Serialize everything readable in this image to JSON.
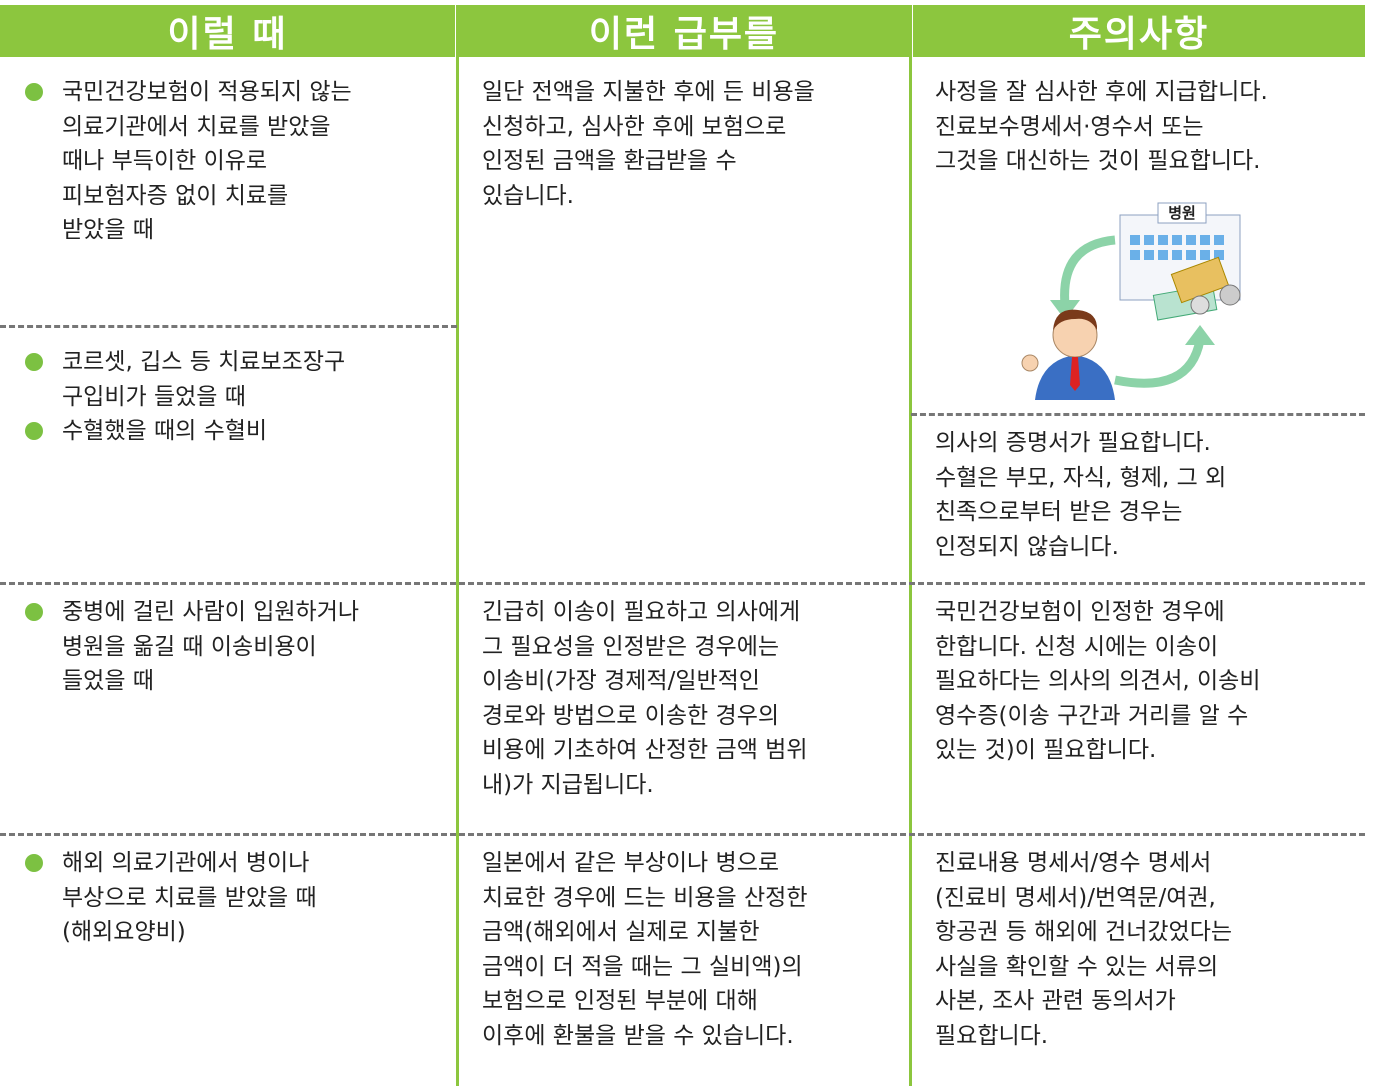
{
  "header": [
    "이럴 때",
    "이런 급부를",
    "주의사항"
  ],
  "illustration_label": "병원",
  "rows": [
    {
      "situation": [
        [
          [
            "국민건강보험이 적용되지 않는",
            "의료기관에서 치료를 받았을",
            "때나 부득이한 이유로",
            "피보험자증 없이 치료를",
            "받았을 때"
          ]
        ],
        [
          [
            "코르셋, 깁스 등 치료보조장구",
            "구입비가 들었을 때"
          ],
          [
            "수혈했을 때의 수혈비"
          ]
        ]
      ],
      "benefit": [
        "일단 전액을 지불한 후에 든 비용을",
        "신청하고, 심사한 후에 보험으로",
        "인정된 금액을 환급받을 수",
        "있습니다."
      ],
      "notes": [
        [
          "사정을 잘 심사한 후에 지급합니다.",
          "진료보수명세서·영수서 또는",
          "그것을 대신하는 것이 필요합니다."
        ],
        [
          "의사의 증명서가 필요합니다.",
          "수혈은 부모, 자식, 형제, 그 외",
          "친족으로부터 받은 경우는",
          "인정되지 않습니다."
        ]
      ]
    },
    {
      "situation": [
        [
          [
            "중병에 걸린 사람이 입원하거나",
            "병원을 옮길 때 이송비용이",
            "들었을 때"
          ]
        ]
      ],
      "benefit": [
        "긴급히 이송이 필요하고 의사에게",
        "그 필요성을 인정받은 경우에는",
        "이송비(가장 경제적/일반적인",
        "경로와 방법으로 이송한 경우의",
        "비용에 기초하여 산정한 금액 범위",
        "내)가 지급됩니다."
      ],
      "notes": [
        [
          "국민건강보험이 인정한 경우에",
          "한합니다. 신청 시에는 이송이",
          "필요하다는 의사의 의견서, 이송비",
          "영수증(이송 구간과 거리를 알 수",
          "있는 것)이 필요합니다."
        ]
      ]
    },
    {
      "situation": [
        [
          [
            "해외 의료기관에서 병이나",
            "부상으로 치료를 받았을 때",
            "(해외요양비)"
          ]
        ]
      ],
      "benefit": [
        "일본에서 같은 부상이나 병으로",
        "치료한 경우에 드는 비용을 산정한",
        "금액(해외에서 실제로 지불한",
        "금액이 더 적을 때는 그 실비액)의",
        "보험으로 인정된 부분에 대해",
        "이후에 환불을 받을 수 있습니다."
      ],
      "notes": [
        [
          "진료내용 명세서/영수 명세서",
          "(진료비 명세서)/번역문/여권,",
          "항공권 등 해외에 건너갔었다는",
          "사실을 확인할 수 있는 서류의",
          "사본, 조사 관련 동의서가",
          "필요합니다."
        ]
      ]
    }
  ]
}
